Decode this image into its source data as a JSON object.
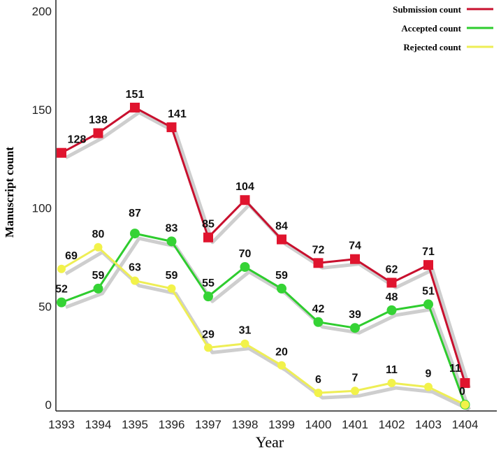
{
  "chart_data": {
    "type": "line",
    "xlabel": "Year",
    "ylabel": "Manuscript count",
    "x": [
      "1393",
      "1394",
      "1395",
      "1396",
      "1397",
      "1398",
      "1399",
      "1400",
      "1401",
      "1402",
      "1403",
      "1404"
    ],
    "ylim": [
      0,
      200
    ],
    "yticks": [
      0,
      50,
      100,
      150,
      200
    ],
    "grid": false,
    "legend_position": "top-right",
    "series": [
      {
        "name": "Submission count",
        "color": "#e0142e",
        "line_color": "#c8102e",
        "marker": "square",
        "values": [
          128,
          138,
          151,
          141,
          85,
          104,
          84,
          72,
          74,
          62,
          71,
          11
        ]
      },
      {
        "name": "Accepted count",
        "color": "#35d335",
        "line_color": "#2ecc2e",
        "marker": "circle",
        "values": [
          52,
          59,
          87,
          83,
          55,
          70,
          59,
          42,
          39,
          48,
          51,
          0
        ]
      },
      {
        "name": "Rejected count",
        "color": "#f2f24a",
        "line_color": "#eeee55",
        "marker": "circle",
        "values": [
          69,
          80,
          63,
          59,
          29,
          31,
          20,
          6,
          7,
          11,
          9,
          0
        ]
      }
    ],
    "data_labels": {
      "Submission count": [
        "128",
        "138",
        "151",
        "141",
        "85",
        "104",
        "84",
        "72",
        "74",
        "62",
        "71",
        "11"
      ],
      "Accepted count": [
        "52",
        "59",
        "87",
        "83",
        "55",
        "70",
        "59",
        "42",
        "39",
        "48",
        "51",
        ""
      ],
      "Rejected count": [
        "69",
        "80",
        "63",
        "59",
        "29",
        "31",
        "20",
        "6",
        "7",
        "11",
        "9",
        "0"
      ]
    }
  }
}
